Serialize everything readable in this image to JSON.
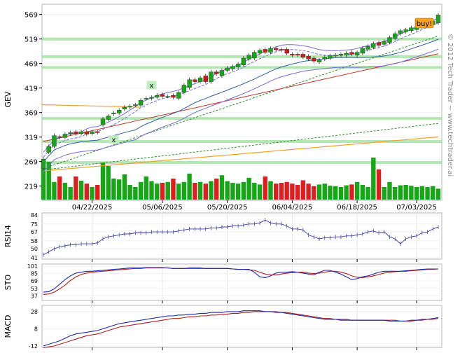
{
  "chart_data": {
    "type": "candlestick",
    "ticker": "GEV",
    "copyright": "© 2012 Tech Trader ~ www.techtrader.ai",
    "signal_label": "buy!",
    "x_tick_labels": [
      "04/22/2025",
      "05/06/2025",
      "05/20/2025",
      "06/04/2025",
      "06/18/2025",
      "07/03/2025"
    ],
    "price_axis": {
      "ticks": [
        569,
        519,
        469,
        419,
        369,
        319,
        269,
        219
      ],
      "ylim": [
        190,
        590
      ]
    },
    "rsi": {
      "label": "RSI14",
      "ticks": [
        84,
        75,
        67,
        58,
        50,
        41
      ],
      "ylim": [
        41,
        84
      ]
    },
    "sto": {
      "label": "STO",
      "ticks": [
        101,
        85,
        69,
        53,
        37
      ],
      "ylim": [
        30,
        101
      ]
    },
    "macd": {
      "label": "MACD",
      "ticks": [
        28,
        8,
        -12
      ],
      "ylim": [
        -12,
        32
      ]
    },
    "closes": [
      274,
      300,
      322,
      318,
      325,
      328,
      326,
      330,
      325,
      330,
      328,
      356,
      362,
      368,
      374,
      380,
      382,
      385,
      394,
      398,
      400,
      404,
      402,
      402,
      400,
      410,
      425,
      436,
      432,
      440,
      432,
      452,
      448,
      455,
      460,
      463,
      468,
      480,
      486,
      492,
      496,
      492,
      500,
      497,
      496,
      490,
      486,
      486,
      482,
      478,
      474,
      476,
      482,
      485,
      486,
      488,
      490,
      488,
      492,
      500,
      504,
      510,
      506,
      514,
      522,
      530,
      536,
      538,
      542,
      544,
      548,
      552,
      556,
      568
    ],
    "opens": [
      255,
      288,
      300,
      320,
      318,
      326,
      330,
      326,
      330,
      326,
      330,
      344,
      355,
      366,
      368,
      376,
      380,
      384,
      384,
      398,
      398,
      400,
      406,
      402,
      404,
      398,
      410,
      420,
      436,
      432,
      444,
      432,
      452,
      444,
      455,
      458,
      462,
      466,
      478,
      480,
      490,
      498,
      492,
      500,
      498,
      498,
      488,
      488,
      488,
      484,
      480,
      472,
      478,
      480,
      486,
      486,
      486,
      492,
      486,
      490,
      498,
      502,
      512,
      508,
      512,
      520,
      530,
      534,
      536,
      538,
      544,
      546,
      548,
      552
    ],
    "volume_levels": [
      0.82,
      0.9,
      0.42,
      0.55,
      0.4,
      0.3,
      0.55,
      0.45,
      0.38,
      0.3,
      0.35,
      0.88,
      0.8,
      0.5,
      0.48,
      0.6,
      0.35,
      0.3,
      0.42,
      0.55,
      0.44,
      0.38,
      0.4,
      0.42,
      0.5,
      0.38,
      0.42,
      0.62,
      0.4,
      0.42,
      0.38,
      0.44,
      0.5,
      0.58,
      0.44,
      0.4,
      0.38,
      0.42,
      0.52,
      0.4,
      0.36,
      0.55,
      0.44,
      0.38,
      0.4,
      0.42,
      0.38,
      0.35,
      0.46,
      0.38,
      0.32,
      0.36,
      0.38,
      0.33,
      0.32,
      0.3,
      0.34,
      0.36,
      0.42,
      0.35,
      0.3,
      1.0,
      0.72,
      0.3,
      0.42,
      0.3,
      0.34,
      0.35,
      0.33,
      0.3,
      0.32,
      0.3,
      0.32,
      0.26
    ],
    "rsi_values": [
      44,
      47,
      50,
      52,
      53,
      54,
      54,
      55,
      55,
      55,
      56,
      60,
      62,
      63,
      64,
      65,
      65,
      66,
      66,
      66,
      67,
      67,
      67,
      67,
      67,
      68,
      69,
      70,
      70,
      70,
      70,
      71,
      71,
      72,
      72,
      73,
      73,
      74,
      75,
      75,
      76,
      79,
      76,
      75,
      75,
      73,
      70,
      70,
      69,
      64,
      62,
      60,
      61,
      61,
      62,
      62,
      63,
      63,
      64,
      65,
      67,
      68,
      66,
      67,
      62,
      60,
      55,
      60,
      62,
      63,
      66,
      67,
      70,
      72
    ],
    "sto_k": [
      45,
      46,
      52,
      62,
      72,
      80,
      86,
      88,
      90,
      90,
      91,
      92,
      93,
      94,
      95,
      96,
      97,
      97,
      97,
      98,
      98,
      98,
      98,
      97,
      96,
      96,
      96,
      97,
      97,
      97,
      96,
      96,
      96,
      96,
      96,
      95,
      94,
      94,
      94,
      88,
      78,
      76,
      80,
      86,
      88,
      88,
      89,
      88,
      86,
      84,
      82,
      88,
      92,
      92,
      88,
      84,
      78,
      72,
      74,
      78,
      80,
      84,
      88,
      90,
      90,
      90,
      90,
      91,
      92,
      93,
      94,
      95,
      95,
      95
    ],
    "sto_d": [
      40,
      41,
      45,
      52,
      60,
      70,
      78,
      83,
      86,
      88,
      89,
      90,
      91,
      92,
      93,
      94,
      95,
      96,
      96,
      97,
      97,
      97,
      97,
      97,
      96,
      96,
      96,
      96,
      96,
      96,
      96,
      96,
      96,
      96,
      96,
      95,
      94,
      94,
      93,
      92,
      88,
      84,
      82,
      82,
      84,
      86,
      87,
      88,
      88,
      86,
      85,
      86,
      88,
      90,
      90,
      88,
      85,
      80,
      77,
      76,
      78,
      80,
      83,
      86,
      88,
      89,
      90,
      90,
      91,
      92,
      93,
      94,
      94,
      95
    ],
    "macd_line": [
      -12,
      -10,
      -8,
      -6,
      -3,
      0,
      2,
      3,
      4,
      5,
      6,
      8,
      10,
      12,
      14,
      15,
      16,
      17,
      18,
      19,
      20,
      21,
      22,
      23,
      23,
      24,
      24,
      25,
      25,
      26,
      26,
      27,
      27,
      27,
      28,
      28,
      28,
      29,
      29,
      29,
      29,
      28,
      28,
      27,
      27,
      26,
      25,
      24,
      23,
      22,
      21,
      20,
      19,
      19,
      19,
      18,
      18,
      18,
      18,
      18,
      18,
      18,
      18,
      18,
      17,
      17,
      17,
      17,
      18,
      18,
      19,
      19,
      20,
      21
    ],
    "signal_line": [
      -14,
      -13,
      -12,
      -10,
      -8,
      -6,
      -4,
      -2,
      0,
      1,
      2,
      4,
      6,
      8,
      10,
      11,
      12,
      13,
      14,
      15,
      16,
      17,
      18,
      19,
      20,
      20,
      21,
      22,
      22,
      23,
      23,
      24,
      24,
      25,
      25,
      26,
      26,
      27,
      27,
      28,
      28,
      28,
      28,
      28,
      27,
      27,
      26,
      25,
      24,
      23,
      22,
      21,
      20,
      20,
      19,
      19,
      19,
      18,
      18,
      18,
      18,
      18,
      18,
      18,
      18,
      18,
      17,
      17,
      17,
      18,
      18,
      19,
      19,
      20
    ]
  }
}
